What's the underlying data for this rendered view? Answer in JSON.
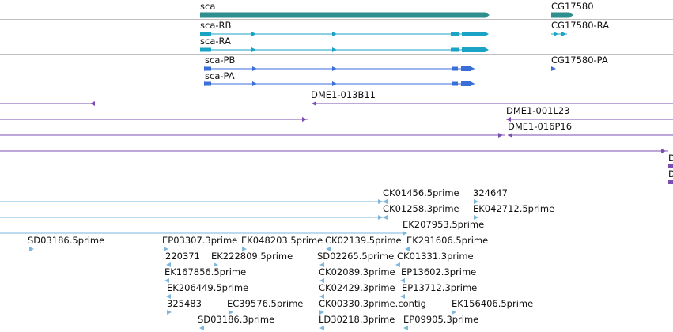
{
  "colors": {
    "gene": "#2f8f8f",
    "transcript_cg": "#1aa3c4",
    "transcript_tx": "#3a6fd8",
    "bac": "#7b4fb0",
    "est": "#7eb6dc",
    "divider": "#bfbfbf"
  },
  "tracks": {
    "genes": {
      "labels": [
        "sca",
        "CG17580"
      ]
    },
    "cg_transcripts": {
      "labels": [
        "sca-RB",
        "sca-RA",
        "CG17580-RA"
      ]
    },
    "transcripts": {
      "labels": [
        "sca-PB",
        "sca-PA",
        "CG17580-PA"
      ]
    },
    "bac_clones": {
      "labels": [
        "DME1-013B11",
        "DME1-001L23",
        "DME1-016P16",
        "D",
        "D"
      ]
    },
    "ests": {
      "labels": [
        "CK01456.5prime",
        "324647",
        "CK01258.3prime",
        "EK042712.5prime",
        "EK207953.5prime",
        "SD03186.5prime",
        "EP03307.3prime",
        "EK048203.5prime",
        "CK02139.5prime",
        "EK291606.5prime",
        "220371",
        "EK222809.5prime",
        "SD02265.5prime",
        "CK01331.3prime",
        "EK167856.5prime",
        "CK02089.3prime",
        "EP13602.3prime",
        "EK206449.5prime",
        "CK02429.3prime",
        "EP13712.3prime",
        "325483",
        "EC39576.5prime",
        "CK00330.3prime.contig",
        "EK156406.5prime",
        "SD03186.3prime",
        "LD30218.3prime",
        "EP09905.3prime"
      ]
    }
  }
}
